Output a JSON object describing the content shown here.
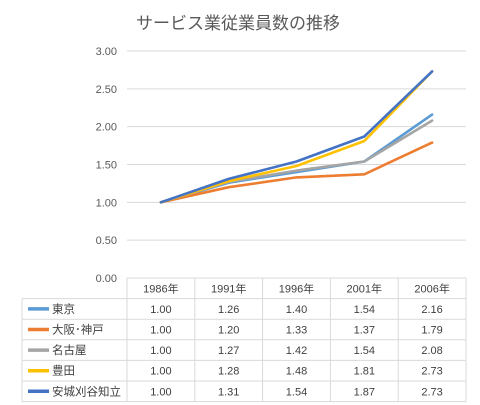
{
  "chart_data": {
    "type": "line",
    "title": "サービス業従業員数の推移",
    "categories": [
      "1986年",
      "1991年",
      "1996年",
      "2001年",
      "2006年"
    ],
    "ylim": [
      0,
      3
    ],
    "yticks": [
      "0.00",
      "0.50",
      "1.00",
      "1.50",
      "2.00",
      "2.50",
      "3.00"
    ],
    "grid": true,
    "data_table": true,
    "series": [
      {
        "name": "東京",
        "color": "#5B9BD5",
        "values": [
          1.0,
          1.26,
          1.4,
          1.54,
          2.16
        ],
        "labels": [
          "1.00",
          "1.26",
          "1.40",
          "1.54",
          "2.16"
        ]
      },
      {
        "name": "大阪･神戸",
        "color": "#ED7D31",
        "values": [
          1.0,
          1.2,
          1.33,
          1.37,
          1.79
        ],
        "labels": [
          "1.00",
          "1.20",
          "1.33",
          "1.37",
          "1.79"
        ]
      },
      {
        "name": "名古屋",
        "color": "#A5A5A5",
        "values": [
          1.0,
          1.27,
          1.42,
          1.54,
          2.08
        ],
        "labels": [
          "1.00",
          "1.27",
          "1.42",
          "1.54",
          "2.08"
        ]
      },
      {
        "name": "豊田",
        "color": "#FFC000",
        "values": [
          1.0,
          1.28,
          1.48,
          1.81,
          2.73
        ],
        "labels": [
          "1.00",
          "1.28",
          "1.48",
          "1.81",
          "2.73"
        ]
      },
      {
        "name": "安城刈谷知立",
        "color": "#4472C4",
        "values": [
          1.0,
          1.31,
          1.54,
          1.87,
          2.73
        ],
        "labels": [
          "1.00",
          "1.31",
          "1.54",
          "1.87",
          "2.73"
        ]
      }
    ]
  }
}
